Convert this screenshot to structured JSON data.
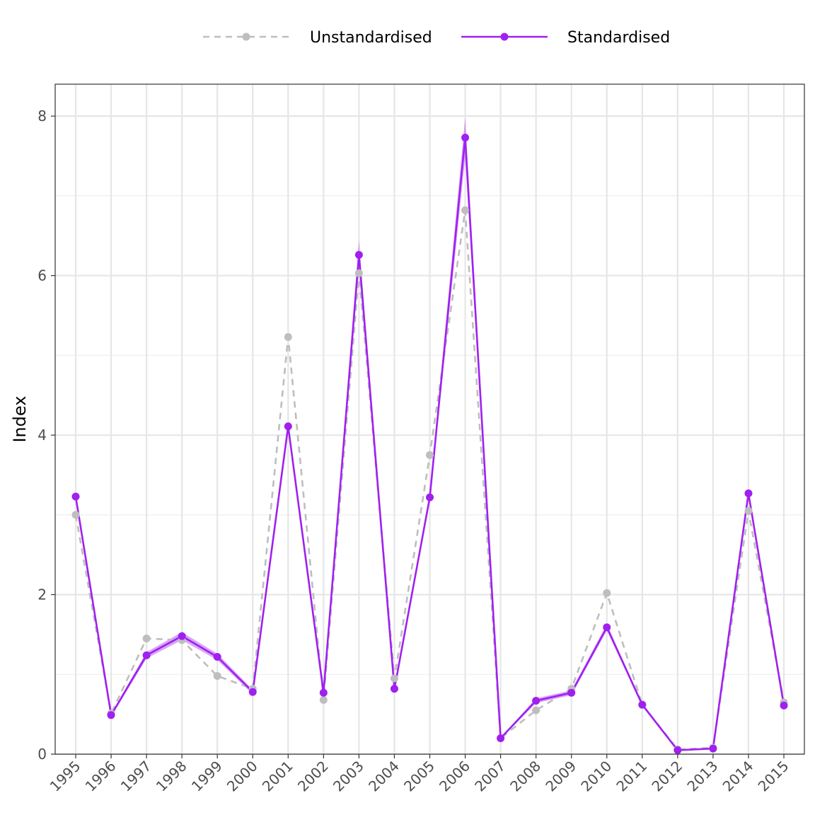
{
  "chart_data": {
    "type": "line",
    "title": "",
    "xlabel": "",
    "ylabel": "Index",
    "categories": [
      "1995",
      "1996",
      "1997",
      "1998",
      "1999",
      "2000",
      "2001",
      "2002",
      "2003",
      "2004",
      "2005",
      "2006",
      "2007",
      "2008",
      "2009",
      "2010",
      "2011",
      "2012",
      "2013",
      "2014",
      "2015"
    ],
    "ylim": [
      0,
      8.4
    ],
    "yticks": [
      0,
      2,
      4,
      6,
      8
    ],
    "grid": true,
    "legend_position": "top",
    "series": [
      {
        "name": "Unstandardised",
        "style": "dashed",
        "color": "#bebebe",
        "values": [
          3.0,
          0.51,
          1.45,
          1.43,
          0.98,
          0.82,
          5.23,
          0.68,
          6.03,
          0.95,
          3.75,
          6.82,
          0.2,
          0.55,
          0.82,
          2.02,
          0.62,
          0.06,
          0.08,
          3.05,
          0.65
        ]
      },
      {
        "name": "Standardised",
        "style": "solid",
        "color": "#a020f0",
        "values": [
          3.23,
          0.49,
          1.24,
          1.48,
          1.22,
          0.78,
          4.11,
          0.77,
          6.26,
          0.82,
          3.22,
          7.73,
          0.2,
          0.67,
          0.77,
          1.59,
          0.62,
          0.05,
          0.07,
          3.27,
          0.61
        ],
        "band_halfwidth": [
          0.03,
          0.02,
          0.04,
          0.05,
          0.04,
          0.03,
          0.06,
          0.03,
          0.18,
          0.03,
          0.05,
          0.25,
          0.01,
          0.03,
          0.03,
          0.04,
          0.02,
          0.01,
          0.01,
          0.06,
          0.02
        ]
      }
    ]
  }
}
